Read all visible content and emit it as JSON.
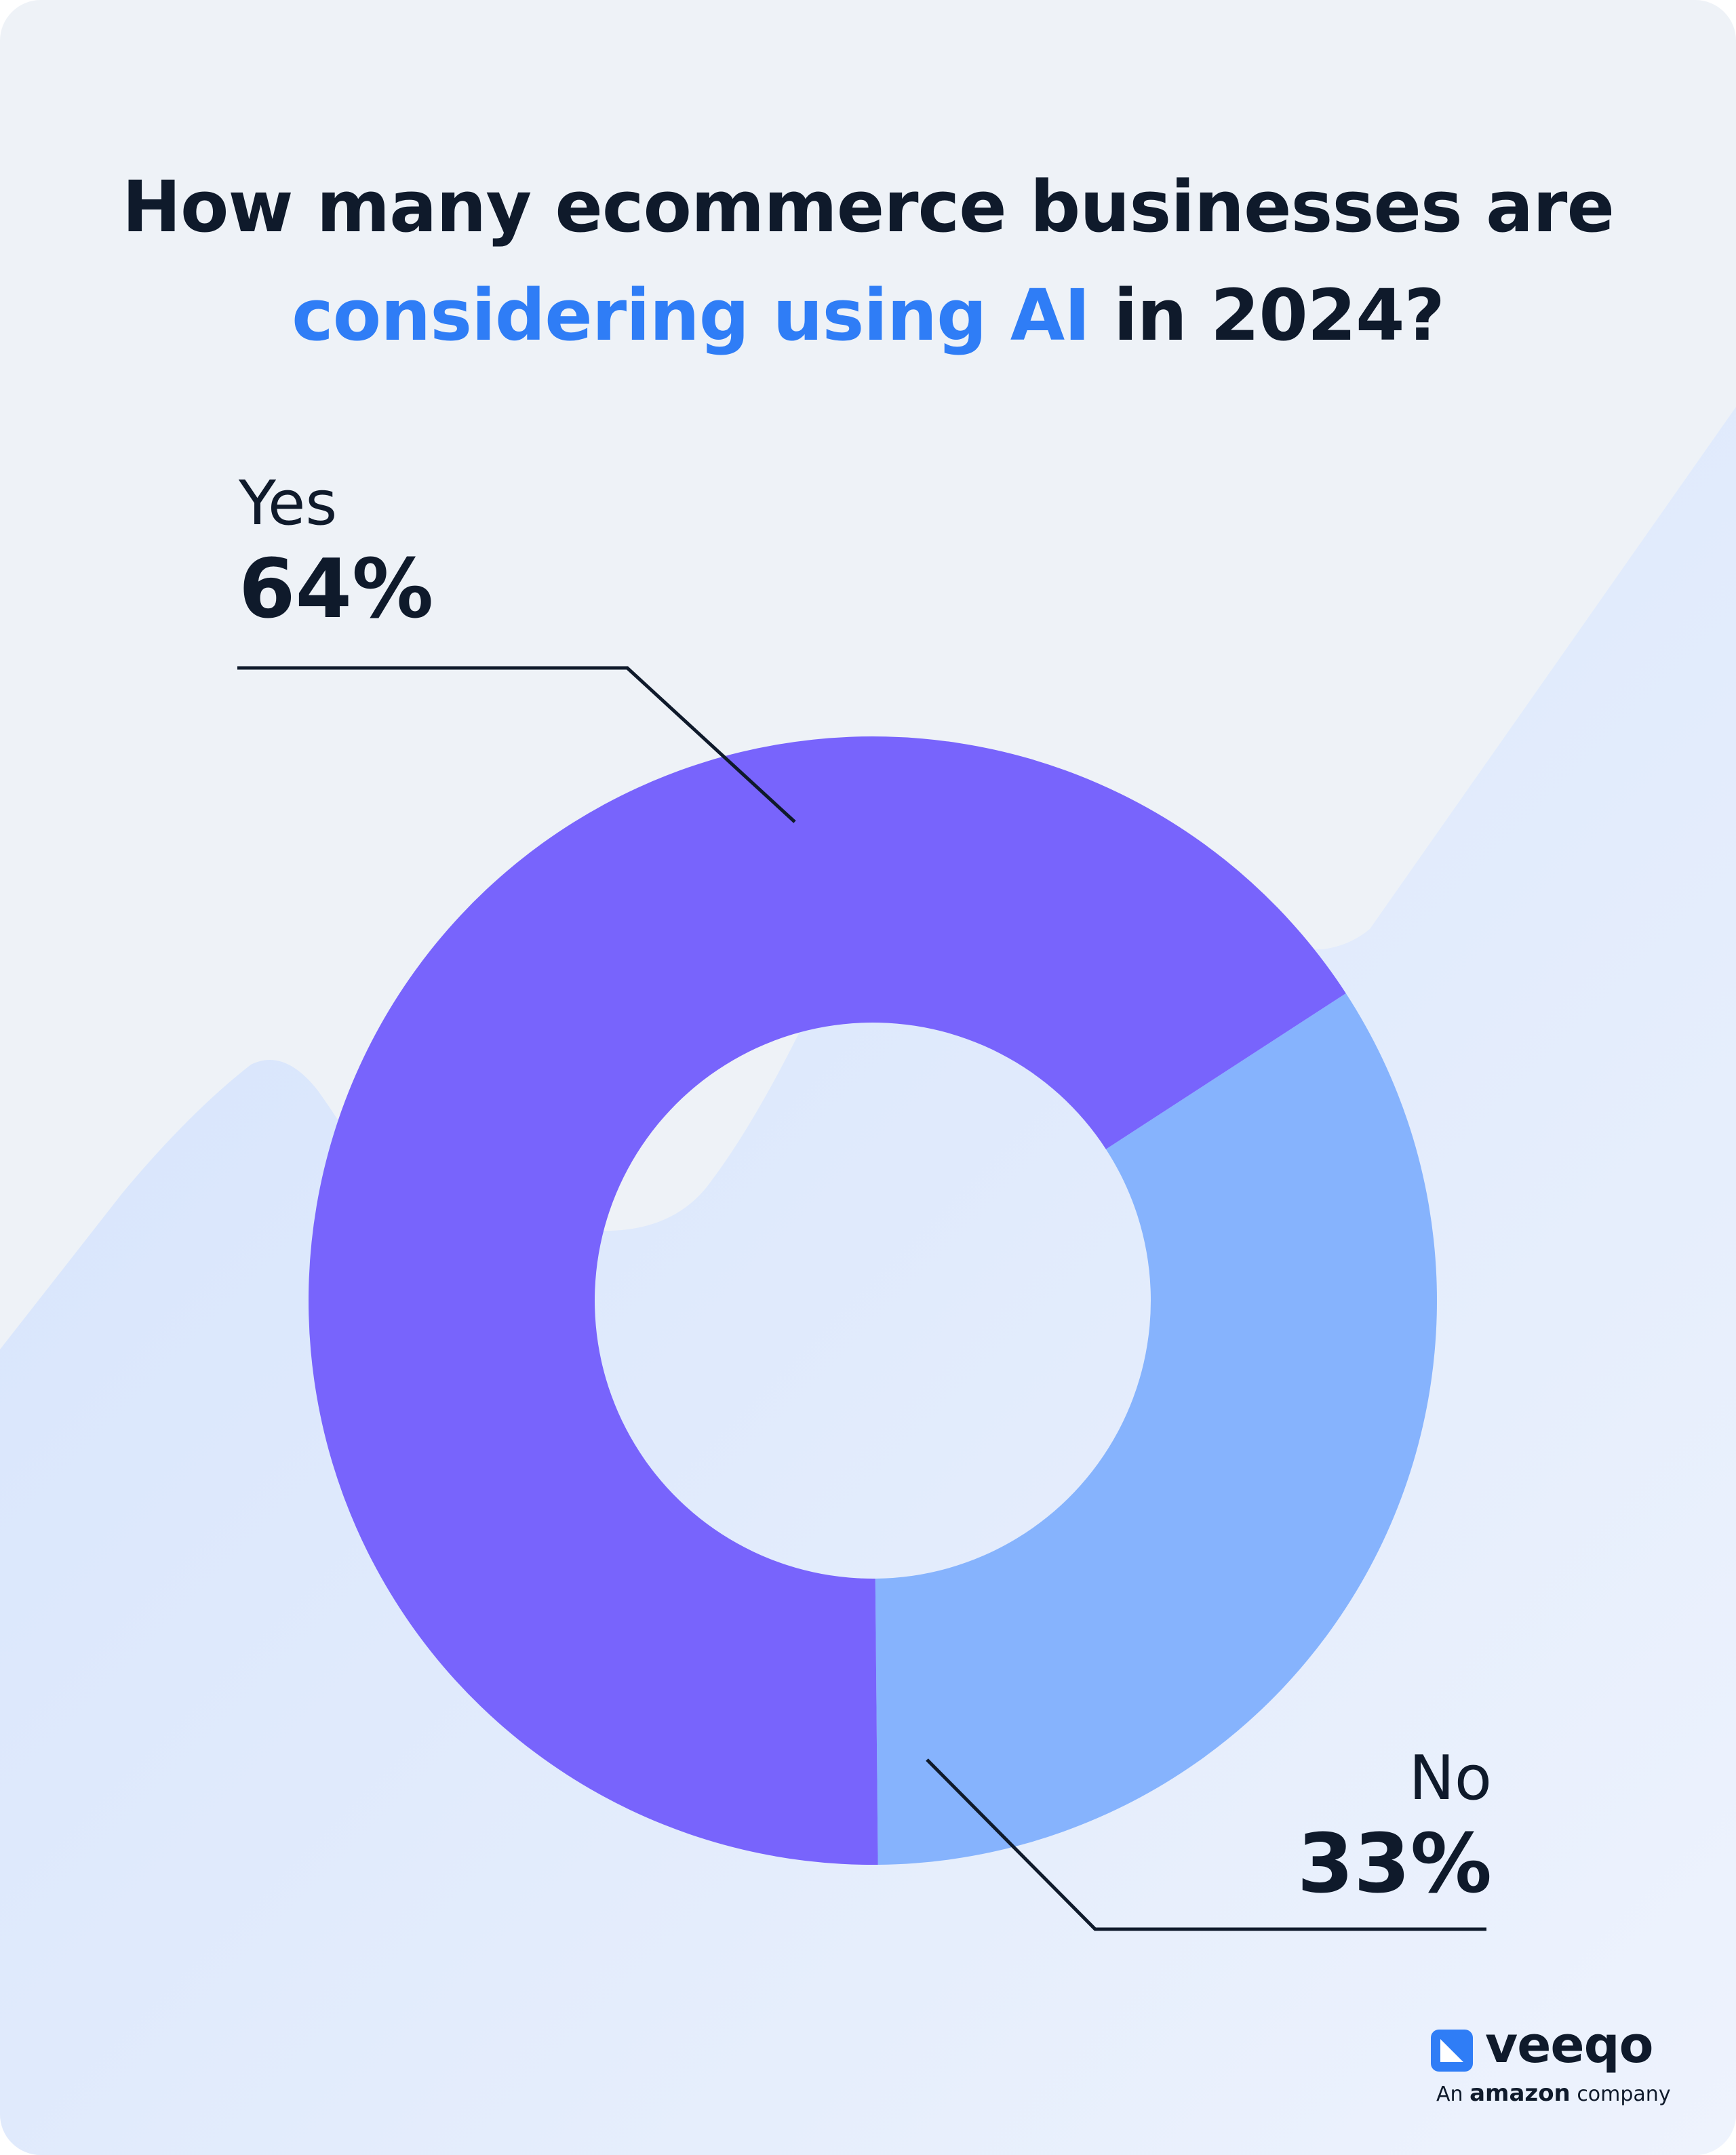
{
  "title": {
    "prefix": "How many ecommerce businesses are",
    "highlight": "considering using AI",
    "suffix": "in 2024?"
  },
  "chart_data": {
    "type": "pie",
    "donut": true,
    "slices": [
      {
        "label": "Yes",
        "value": 64,
        "display": "64%"
      },
      {
        "label": "No",
        "value": 33,
        "display": "33%"
      }
    ]
  },
  "colors": {
    "yes": "#7864fc",
    "no": "#86b3fd",
    "highlight": "#2f7df6",
    "text": "#0f1a2b"
  },
  "brand": {
    "name": "veeqo",
    "tagline_prefix": "An",
    "tagline_brand": "amazon",
    "tagline_suffix": "company",
    "icon": "veeqo-logo-icon"
  }
}
